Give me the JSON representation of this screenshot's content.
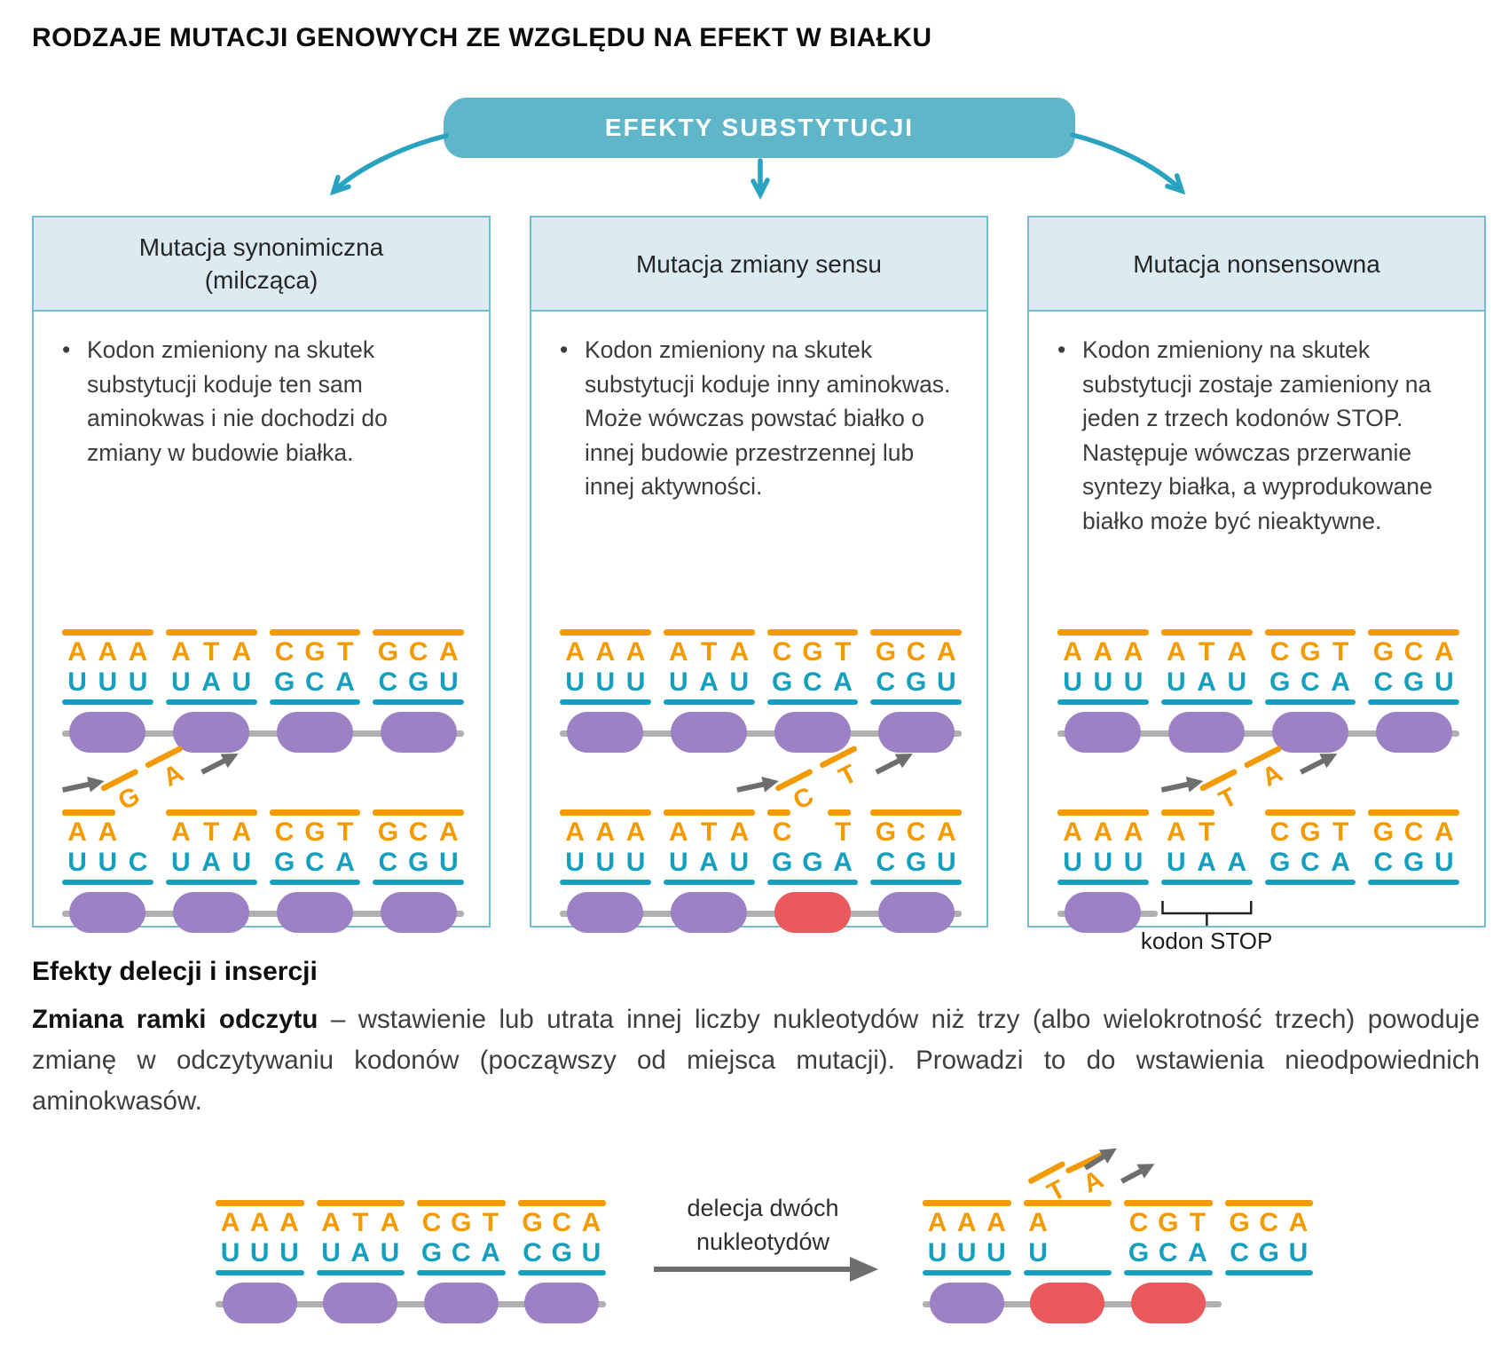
{
  "title": "RODZAJE MUTACJI GENOWYCH ZE WZGLĘDU NA EFEKT W BIAŁKU",
  "banner": {
    "label": "EFEKTY SUBSTYTUCJI"
  },
  "colors": {
    "dna_orange": "#F39A00",
    "rna_teal": "#159FBE",
    "amino_purple": "#9C82C4",
    "amino_red": "#E9595C",
    "banner_bg": "#5FB6C9",
    "card_border": "#74BDCF",
    "card_header_bg": "#DCEBF2",
    "flow_arrow": "#29A3C0",
    "gray_arrow": "#6E6E6E",
    "chain_gray": "#B0B0B0"
  },
  "cards": [
    {
      "title": "Mutacja synonimiczna (milcząca)",
      "title_lines": [
        "Mutacja synonimiczna",
        "(milcząca)"
      ],
      "bullet": "Kodon zmieniony na skutek substytucji koduje ten sam aminokwas i nie dochodzi do zmiany w budowie białka.",
      "diagram_normal": {
        "codons": [
          {
            "dna": [
              "A",
              "A",
              "A"
            ],
            "rna": [
              "U",
              "U",
              "U"
            ]
          },
          {
            "dna": [
              "A",
              "T",
              "A"
            ],
            "rna": [
              "U",
              "A",
              "U"
            ]
          },
          {
            "dna": [
              "C",
              "G",
              "T"
            ],
            "rna": [
              "G",
              "C",
              "A"
            ]
          },
          {
            "dna": [
              "G",
              "C",
              "A"
            ],
            "rna": [
              "C",
              "G",
              "U"
            ]
          }
        ],
        "beads": [
          "purple",
          "purple",
          "purple",
          "purple"
        ]
      },
      "diagram_mutated": {
        "codons": [
          {
            "dna": [
              "A",
              "A",
              ""
            ],
            "rna": [
              "U",
              "U",
              "C"
            ]
          },
          {
            "dna": [
              "A",
              "T",
              "A"
            ],
            "rna": [
              "U",
              "A",
              "U"
            ]
          },
          {
            "dna": [
              "C",
              "G",
              "T"
            ],
            "rna": [
              "G",
              "C",
              "A"
            ]
          },
          {
            "dna": [
              "G",
              "C",
              "A"
            ],
            "rna": [
              "C",
              "G",
              "U"
            ]
          }
        ],
        "mutation": {
          "codon": 0,
          "slot": 2,
          "incoming": "G",
          "outgoing": "A"
        },
        "beads": [
          "purple",
          "purple",
          "purple",
          "purple"
        ]
      }
    },
    {
      "title": "Mutacja zmiany sensu",
      "title_lines": [
        "Mutacja zmiany sensu"
      ],
      "bullet": "Kodon zmieniony na skutek substytucji koduje inny aminokwas. Może wówczas powstać białko o innej budowie przestrzennej lub innej aktywności.",
      "diagram_normal": {
        "codons": [
          {
            "dna": [
              "A",
              "A",
              "A"
            ],
            "rna": [
              "U",
              "U",
              "U"
            ]
          },
          {
            "dna": [
              "A",
              "T",
              "A"
            ],
            "rna": [
              "U",
              "A",
              "U"
            ]
          },
          {
            "dna": [
              "C",
              "G",
              "T"
            ],
            "rna": [
              "G",
              "C",
              "A"
            ]
          },
          {
            "dna": [
              "G",
              "C",
              "A"
            ],
            "rna": [
              "C",
              "G",
              "U"
            ]
          }
        ],
        "beads": [
          "purple",
          "purple",
          "purple",
          "purple"
        ]
      },
      "diagram_mutated": {
        "codons": [
          {
            "dna": [
              "A",
              "A",
              "A"
            ],
            "rna": [
              "U",
              "U",
              "U"
            ]
          },
          {
            "dna": [
              "A",
              "T",
              "A"
            ],
            "rna": [
              "U",
              "A",
              "U"
            ]
          },
          {
            "dna": [
              "C",
              "",
              "T"
            ],
            "rna": [
              "G",
              "G",
              "A"
            ]
          },
          {
            "dna": [
              "G",
              "C",
              "A"
            ],
            "rna": [
              "C",
              "G",
              "U"
            ]
          }
        ],
        "mutation": {
          "codon": 2,
          "slot": 1,
          "incoming": "C",
          "outgoing": "T"
        },
        "beads": [
          "purple",
          "purple",
          "red",
          "purple"
        ]
      }
    },
    {
      "title": "Mutacja nonsensowna",
      "title_lines": [
        "Mutacja nonsensowna"
      ],
      "bullet": "Kodon zmieniony na skutek substytucji zostaje zamieniony na jeden z trzech kodonów STOP. Następuje wówczas przerwanie syntezy białka, a wyprodukowane białko może być nieaktywne.",
      "diagram_normal": {
        "codons": [
          {
            "dna": [
              "A",
              "A",
              "A"
            ],
            "rna": [
              "U",
              "U",
              "U"
            ]
          },
          {
            "dna": [
              "A",
              "T",
              "A"
            ],
            "rna": [
              "U",
              "A",
              "U"
            ]
          },
          {
            "dna": [
              "C",
              "G",
              "T"
            ],
            "rna": [
              "G",
              "C",
              "A"
            ]
          },
          {
            "dna": [
              "G",
              "C",
              "A"
            ],
            "rna": [
              "C",
              "G",
              "U"
            ]
          }
        ],
        "beads": [
          "purple",
          "purple",
          "purple",
          "purple"
        ]
      },
      "diagram_mutated": {
        "codons": [
          {
            "dna": [
              "A",
              "A",
              "A"
            ],
            "rna": [
              "U",
              "U",
              "U"
            ]
          },
          {
            "dna": [
              "A",
              "T",
              ""
            ],
            "rna": [
              "U",
              "A",
              "A"
            ]
          },
          {
            "dna": [
              "C",
              "G",
              "T"
            ],
            "rna": [
              "G",
              "C",
              "A"
            ]
          },
          {
            "dna": [
              "G",
              "C",
              "A"
            ],
            "rna": [
              "C",
              "G",
              "U"
            ]
          }
        ],
        "mutation": {
          "codon": 1,
          "slot": 2,
          "incoming": "T",
          "outgoing": "A"
        },
        "beads": [
          "purple"
        ],
        "stop_bracket": {
          "codon": 1,
          "label": "kodon STOP"
        }
      }
    }
  ],
  "deletion_section": {
    "heading": "Efekty delecji i insercji",
    "lead": "Zmiana ramki odczytu",
    "text": " – wstawienie lub utrata innej liczby nukleotydów niż trzy (albo wielokrotność trzech) powoduje zmianę w odczytywaniu kodonów (począwszy od miejsca mutacji). Prowadzi to do wstawienia nieodpowiednich aminokwasów.",
    "arrow_label": "delecja dwóch nukleotydów",
    "arrow_label_lines": [
      "delecja dwóch",
      "nukleotydów"
    ],
    "diagram_before": {
      "codons": [
        {
          "dna": [
            "A",
            "A",
            "A"
          ],
          "rna": [
            "U",
            "U",
            "U"
          ]
        },
        {
          "dna": [
            "A",
            "T",
            "A"
          ],
          "rna": [
            "U",
            "A",
            "U"
          ]
        },
        {
          "dna": [
            "C",
            "G",
            "T"
          ],
          "rna": [
            "G",
            "C",
            "A"
          ]
        },
        {
          "dna": [
            "G",
            "C",
            "A"
          ],
          "rna": [
            "C",
            "G",
            "U"
          ]
        }
      ],
      "beads": [
        "purple",
        "purple",
        "purple",
        "purple"
      ]
    },
    "diagram_after": {
      "codons": [
        {
          "dna": [
            "A",
            "A",
            "A"
          ],
          "rna": [
            "U",
            "U",
            "U"
          ]
        },
        {
          "dna": [
            "A",
            "",
            ""
          ],
          "rna": [
            "U",
            "",
            ""
          ]
        },
        {
          "dna": [
            "C",
            "G",
            "T"
          ],
          "rna": [
            "G",
            "C",
            "A"
          ]
        },
        {
          "dna": [
            "G",
            "C",
            "A"
          ],
          "rna": [
            "C",
            "G",
            "U"
          ]
        }
      ],
      "flying": {
        "codon": 1,
        "letters": [
          "T",
          "A"
        ]
      },
      "beads": [
        "purple",
        "red",
        "red"
      ]
    }
  }
}
